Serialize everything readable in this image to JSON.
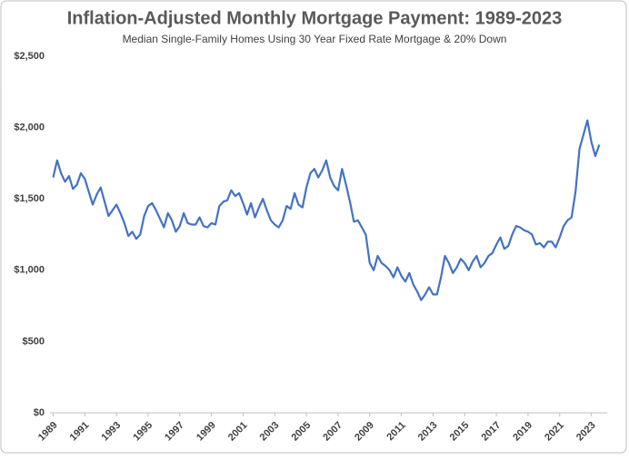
{
  "chart_data": {
    "type": "line",
    "title": "Inflation-Adjusted Monthly Mortgage Payment: 1989-2023",
    "subtitle": "Median Single-Family Homes Using 30 Year Fixed Rate Mortgage & 20% Down",
    "color": "#4472c4",
    "grid": false,
    "xlim": [
      1988.8,
      2024
    ],
    "xticks": [
      1989,
      1991,
      1993,
      1995,
      1997,
      1999,
      2001,
      2003,
      2005,
      2007,
      2009,
      2011,
      2013,
      2015,
      2017,
      2019,
      2021,
      2023
    ],
    "ylim": [
      0,
      2500
    ],
    "yticks": [
      {
        "value": 0,
        "label": "$0"
      },
      {
        "value": 500,
        "label": "$500"
      },
      {
        "value": 1000,
        "label": "$1,000"
      },
      {
        "value": 1500,
        "label": "$1,500"
      },
      {
        "value": 2000,
        "label": "$2,000"
      },
      {
        "value": 2500,
        "label": "$2,500"
      }
    ],
    "x": [
      1989.0,
      1989.25,
      1989.5,
      1989.75,
      1990.0,
      1990.25,
      1990.5,
      1990.75,
      1991.0,
      1991.25,
      1991.5,
      1991.75,
      1992.0,
      1992.25,
      1992.5,
      1992.75,
      1993.0,
      1993.25,
      1993.5,
      1993.75,
      1994.0,
      1994.25,
      1994.5,
      1994.75,
      1995.0,
      1995.25,
      1995.5,
      1995.75,
      1996.0,
      1996.25,
      1996.5,
      1996.75,
      1997.0,
      1997.25,
      1997.5,
      1997.75,
      1998.0,
      1998.25,
      1998.5,
      1998.75,
      1999.0,
      1999.25,
      1999.5,
      1999.75,
      2000.0,
      2000.25,
      2000.5,
      2000.75,
      2001.0,
      2001.25,
      2001.5,
      2001.75,
      2002.0,
      2002.25,
      2002.5,
      2002.75,
      2003.0,
      2003.25,
      2003.5,
      2003.75,
      2004.0,
      2004.25,
      2004.5,
      2004.75,
      2005.0,
      2005.25,
      2005.5,
      2005.75,
      2006.0,
      2006.25,
      2006.5,
      2006.75,
      2007.0,
      2007.25,
      2007.5,
      2007.75,
      2008.0,
      2008.25,
      2008.5,
      2008.75,
      2009.0,
      2009.25,
      2009.5,
      2009.75,
      2010.0,
      2010.25,
      2010.5,
      2010.75,
      2011.0,
      2011.25,
      2011.5,
      2011.75,
      2012.0,
      2012.25,
      2012.5,
      2012.75,
      2013.0,
      2013.25,
      2013.5,
      2013.75,
      2014.0,
      2014.25,
      2014.5,
      2014.75,
      2015.0,
      2015.25,
      2015.5,
      2015.75,
      2016.0,
      2016.25,
      2016.5,
      2016.75,
      2017.0,
      2017.25,
      2017.5,
      2017.75,
      2018.0,
      2018.25,
      2018.5,
      2018.75,
      2019.0,
      2019.25,
      2019.5,
      2019.75,
      2020.0,
      2020.25,
      2020.5,
      2020.75,
      2021.0,
      2021.25,
      2021.5,
      2021.75,
      2022.0,
      2022.25,
      2022.5,
      2022.75,
      2023.0,
      2023.25,
      2023.5
    ],
    "values": [
      1650,
      1770,
      1680,
      1620,
      1660,
      1570,
      1600,
      1680,
      1640,
      1550,
      1460,
      1530,
      1580,
      1480,
      1380,
      1420,
      1460,
      1400,
      1330,
      1240,
      1270,
      1220,
      1250,
      1380,
      1450,
      1470,
      1420,
      1360,
      1300,
      1400,
      1350,
      1270,
      1310,
      1400,
      1330,
      1320,
      1320,
      1370,
      1310,
      1300,
      1330,
      1320,
      1450,
      1480,
      1490,
      1560,
      1520,
      1540,
      1470,
      1390,
      1470,
      1370,
      1440,
      1500,
      1420,
      1350,
      1320,
      1300,
      1350,
      1450,
      1430,
      1540,
      1460,
      1440,
      1580,
      1680,
      1710,
      1650,
      1700,
      1770,
      1650,
      1590,
      1560,
      1710,
      1600,
      1480,
      1340,
      1350,
      1300,
      1250,
      1050,
      1000,
      1100,
      1050,
      1030,
      1000,
      950,
      1020,
      960,
      920,
      980,
      900,
      850,
      790,
      830,
      880,
      830,
      830,
      950,
      1100,
      1050,
      980,
      1020,
      1080,
      1050,
      1000,
      1060,
      1100,
      1020,
      1050,
      1100,
      1120,
      1180,
      1230,
      1150,
      1170,
      1250,
      1310,
      1300,
      1280,
      1270,
      1250,
      1180,
      1190,
      1160,
      1200,
      1200,
      1160,
      1230,
      1310,
      1350,
      1370,
      1550,
      1850,
      1950,
      2050,
      1900,
      1800,
      1880
    ]
  }
}
